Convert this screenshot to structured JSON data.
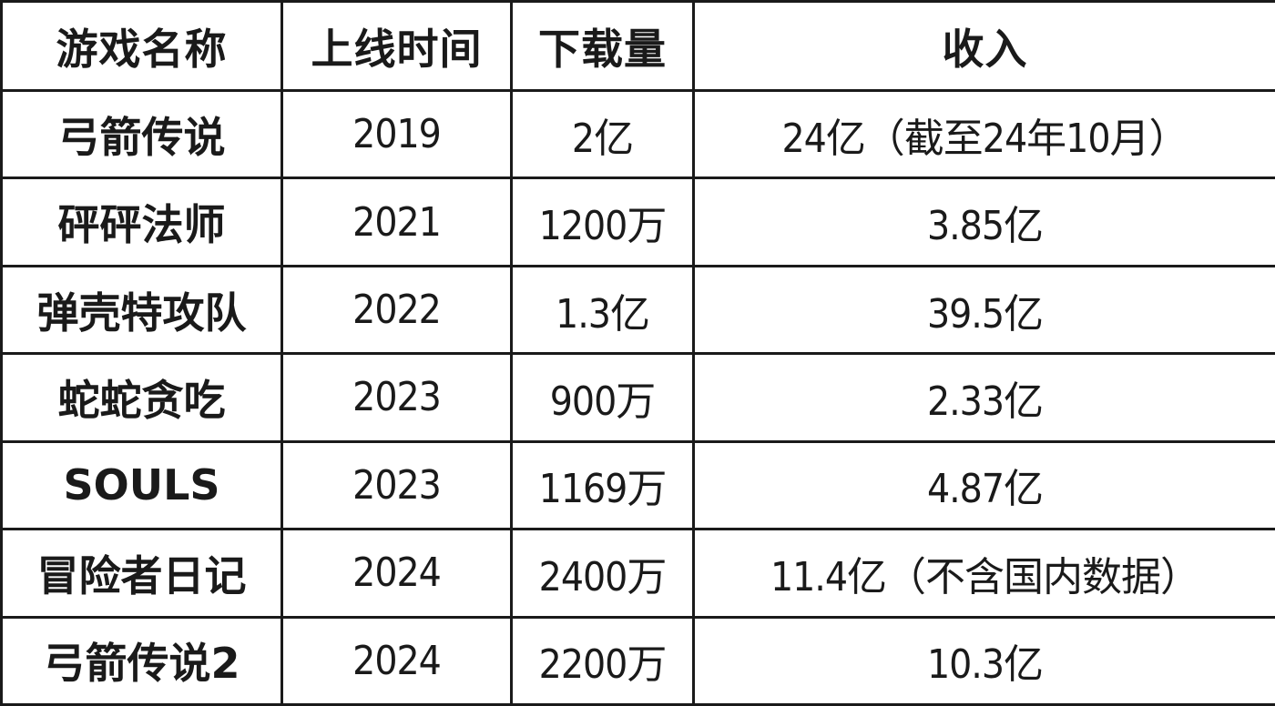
{
  "table": {
    "headers": [
      "游戏名称",
      "上线时间",
      "下载量",
      "收入"
    ],
    "rows": [
      {
        "name": "弓箭传说",
        "launch": "2019",
        "downloads": "2亿",
        "revenue": "24亿（截至24年10月）"
      },
      {
        "name": "砰砰法师",
        "launch": "2021",
        "downloads": "1200万",
        "revenue": "3.85亿"
      },
      {
        "name": "弹壳特攻队",
        "launch": "2022",
        "downloads": "1.3亿",
        "revenue": "39.5亿"
      },
      {
        "name": "蛇蛇贪吃",
        "launch": "2023",
        "downloads": "900万",
        "revenue": "2.33亿"
      },
      {
        "name": "SOULS",
        "launch": "2023",
        "downloads": "1169万",
        "revenue": "4.87亿"
      },
      {
        "name": "冒险者日记",
        "launch": "2024",
        "downloads": "2400万",
        "revenue": "11.4亿（不含国内数据）"
      },
      {
        "name": "弓箭传说2",
        "launch": "2024",
        "downloads": "2200万",
        "revenue": "10.3亿"
      }
    ]
  }
}
